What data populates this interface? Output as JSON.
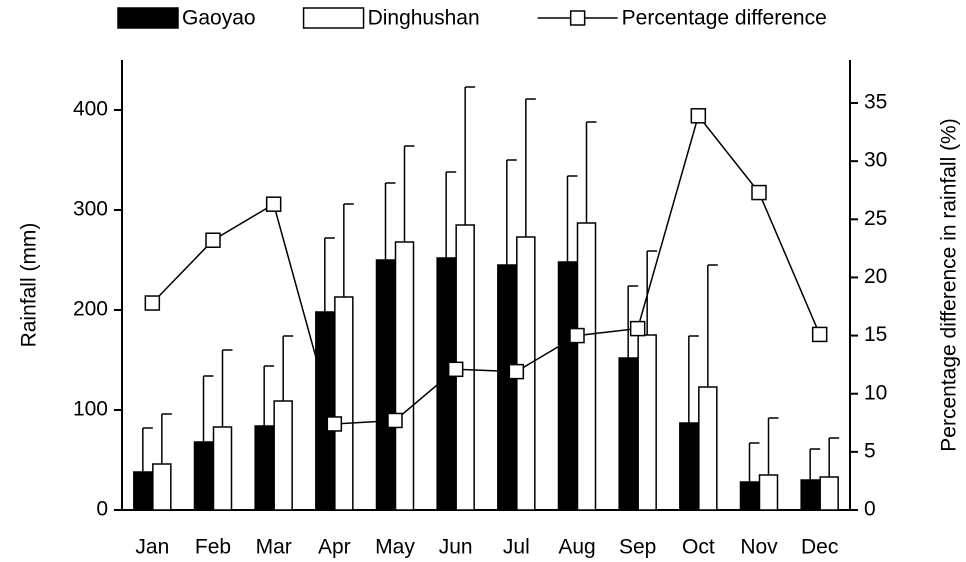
{
  "chart_data": {
    "type": "bar",
    "categories": [
      "Jan",
      "Feb",
      "Mar",
      "Apr",
      "May",
      "Jun",
      "Jul",
      "Aug",
      "Sep",
      "Oct",
      "Nov",
      "Dec"
    ],
    "y_label": "Rainfall (mm)",
    "y2_label": "Percentage difference in rainfall  (%)",
    "ylim": [
      0,
      450
    ],
    "yticks": [
      0,
      100,
      200,
      300,
      400
    ],
    "y2lim": [
      0,
      38.7
    ],
    "y2ticks": [
      0,
      5,
      10,
      15,
      20,
      25,
      30,
      35
    ],
    "series": [
      {
        "name": "Gaoyao",
        "type": "bar",
        "color": "#000000",
        "values": [
          38,
          68,
          84,
          198,
          250,
          252,
          245,
          248,
          152,
          87,
          28,
          30
        ],
        "errors": [
          44,
          66,
          60,
          74,
          77,
          86,
          105,
          86,
          72,
          87,
          39,
          31
        ]
      },
      {
        "name": "Dinghushan",
        "type": "bar",
        "color": "#ffffff",
        "values": [
          46,
          83,
          109,
          213,
          268,
          285,
          273,
          287,
          175,
          123,
          35,
          33
        ],
        "errors": [
          50,
          77,
          65,
          93,
          96,
          138,
          138,
          101,
          84,
          122,
          57,
          39
        ]
      },
      {
        "name": "Percentage difference",
        "type": "line",
        "axis": "y2",
        "color": "#000000",
        "values": [
          17.8,
          23.2,
          26.3,
          7.4,
          7.7,
          12.1,
          11.9,
          15.0,
          15.6,
          33.9,
          27.3,
          15.1
        ]
      }
    ]
  }
}
